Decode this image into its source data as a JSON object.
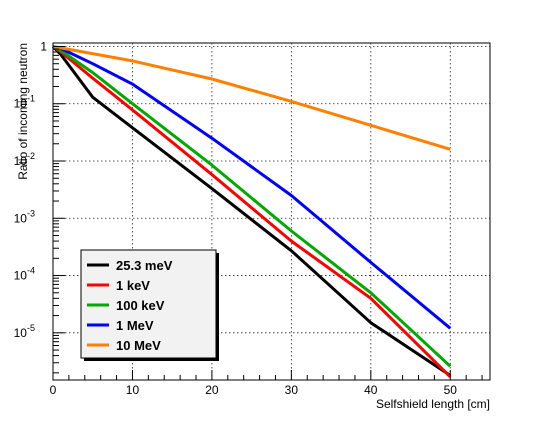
{
  "chart_data": {
    "type": "line",
    "title": "",
    "xlabel": "Selfshield length [cm]",
    "ylabel": "Ratio of incoming neutron",
    "xlim": [
      0,
      55
    ],
    "ylim": [
      1.5e-06,
      1.15
    ],
    "yscale": "log",
    "grid": true,
    "legend_position": "bottom-left",
    "x_ticks": [
      0,
      10,
      20,
      30,
      40,
      50
    ],
    "y_ticks": [
      {
        "value": 1,
        "base": "1",
        "exp": ""
      },
      {
        "value": 0.1,
        "base": "10",
        "exp": "-1"
      },
      {
        "value": 0.01,
        "base": "10",
        "exp": "-2"
      },
      {
        "value": 0.001,
        "base": "10",
        "exp": "-3"
      },
      {
        "value": 0.0001,
        "base": "10",
        "exp": "-4"
      },
      {
        "value": 1e-05,
        "base": "10",
        "exp": "-5"
      }
    ],
    "series": [
      {
        "name": "25.3 meV",
        "color": "#000000",
        "x": [
          0,
          1,
          5,
          10,
          20,
          30,
          40,
          50
        ],
        "y": [
          1.0,
          0.72,
          0.13,
          0.038,
          0.0033,
          0.00027,
          1.5e-05,
          1.8e-06
        ]
      },
      {
        "name": "1 keV",
        "color": "#ff0000",
        "x": [
          0,
          1,
          5,
          10,
          20,
          30,
          40,
          50
        ],
        "y": [
          1.0,
          0.8,
          0.28,
          0.078,
          0.0058,
          0.0004,
          4e-05,
          1.7e-06
        ]
      },
      {
        "name": "100 keV",
        "color": "#00aa00",
        "x": [
          0,
          1,
          5,
          10,
          20,
          30,
          40,
          50
        ],
        "y": [
          1.0,
          0.85,
          0.35,
          0.1,
          0.0085,
          0.0006,
          5e-05,
          2.6e-06
        ]
      },
      {
        "name": "1 MeV",
        "color": "#0000ff",
        "x": [
          0,
          1,
          5,
          10,
          20,
          30,
          40,
          50
        ],
        "y": [
          1.0,
          0.92,
          0.5,
          0.22,
          0.025,
          0.0025,
          0.00017,
          1.2e-05
        ]
      },
      {
        "name": "10 MeV",
        "color": "#ff8000",
        "x": [
          0,
          10,
          20,
          30,
          40,
          50
        ],
        "y": [
          1.0,
          0.56,
          0.27,
          0.11,
          0.042,
          0.016
        ]
      }
    ]
  }
}
